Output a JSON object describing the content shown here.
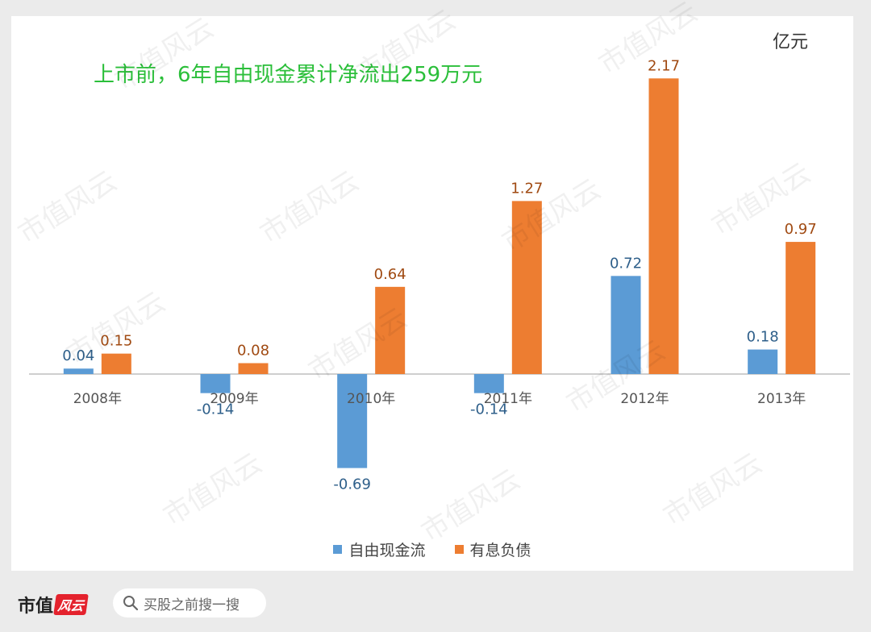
{
  "chart_data": {
    "type": "bar",
    "title": "上市前，6年自由现金累计净流出259万元",
    "unit": "亿元",
    "categories": [
      "2008年",
      "2009年",
      "2010年",
      "2011年",
      "2012年",
      "2013年"
    ],
    "series": [
      {
        "name": "自由现金流",
        "color": "#5b9bd5",
        "values": [
          0.04,
          -0.14,
          -0.69,
          -0.14,
          0.72,
          0.18
        ],
        "labels": [
          "0.04",
          "-0.14",
          "-0.69",
          "-0.14",
          "0.72",
          "0.18"
        ]
      },
      {
        "name": "有息负债",
        "color": "#ed7d31",
        "values": [
          0.15,
          0.08,
          0.64,
          1.27,
          2.17,
          0.97
        ],
        "labels": [
          "0.15",
          "0.08",
          "0.64",
          "1.27",
          "2.17",
          "0.97"
        ]
      }
    ],
    "ylim": [
      -0.75,
      2.2
    ],
    "xlabel": "",
    "ylabel": "",
    "grid": false,
    "legend": "bottom"
  },
  "footer": {
    "brand_text": "市值",
    "brand_badge": "风云",
    "search_placeholder": "买股之前搜一搜"
  },
  "watermark_text": "市值风云"
}
